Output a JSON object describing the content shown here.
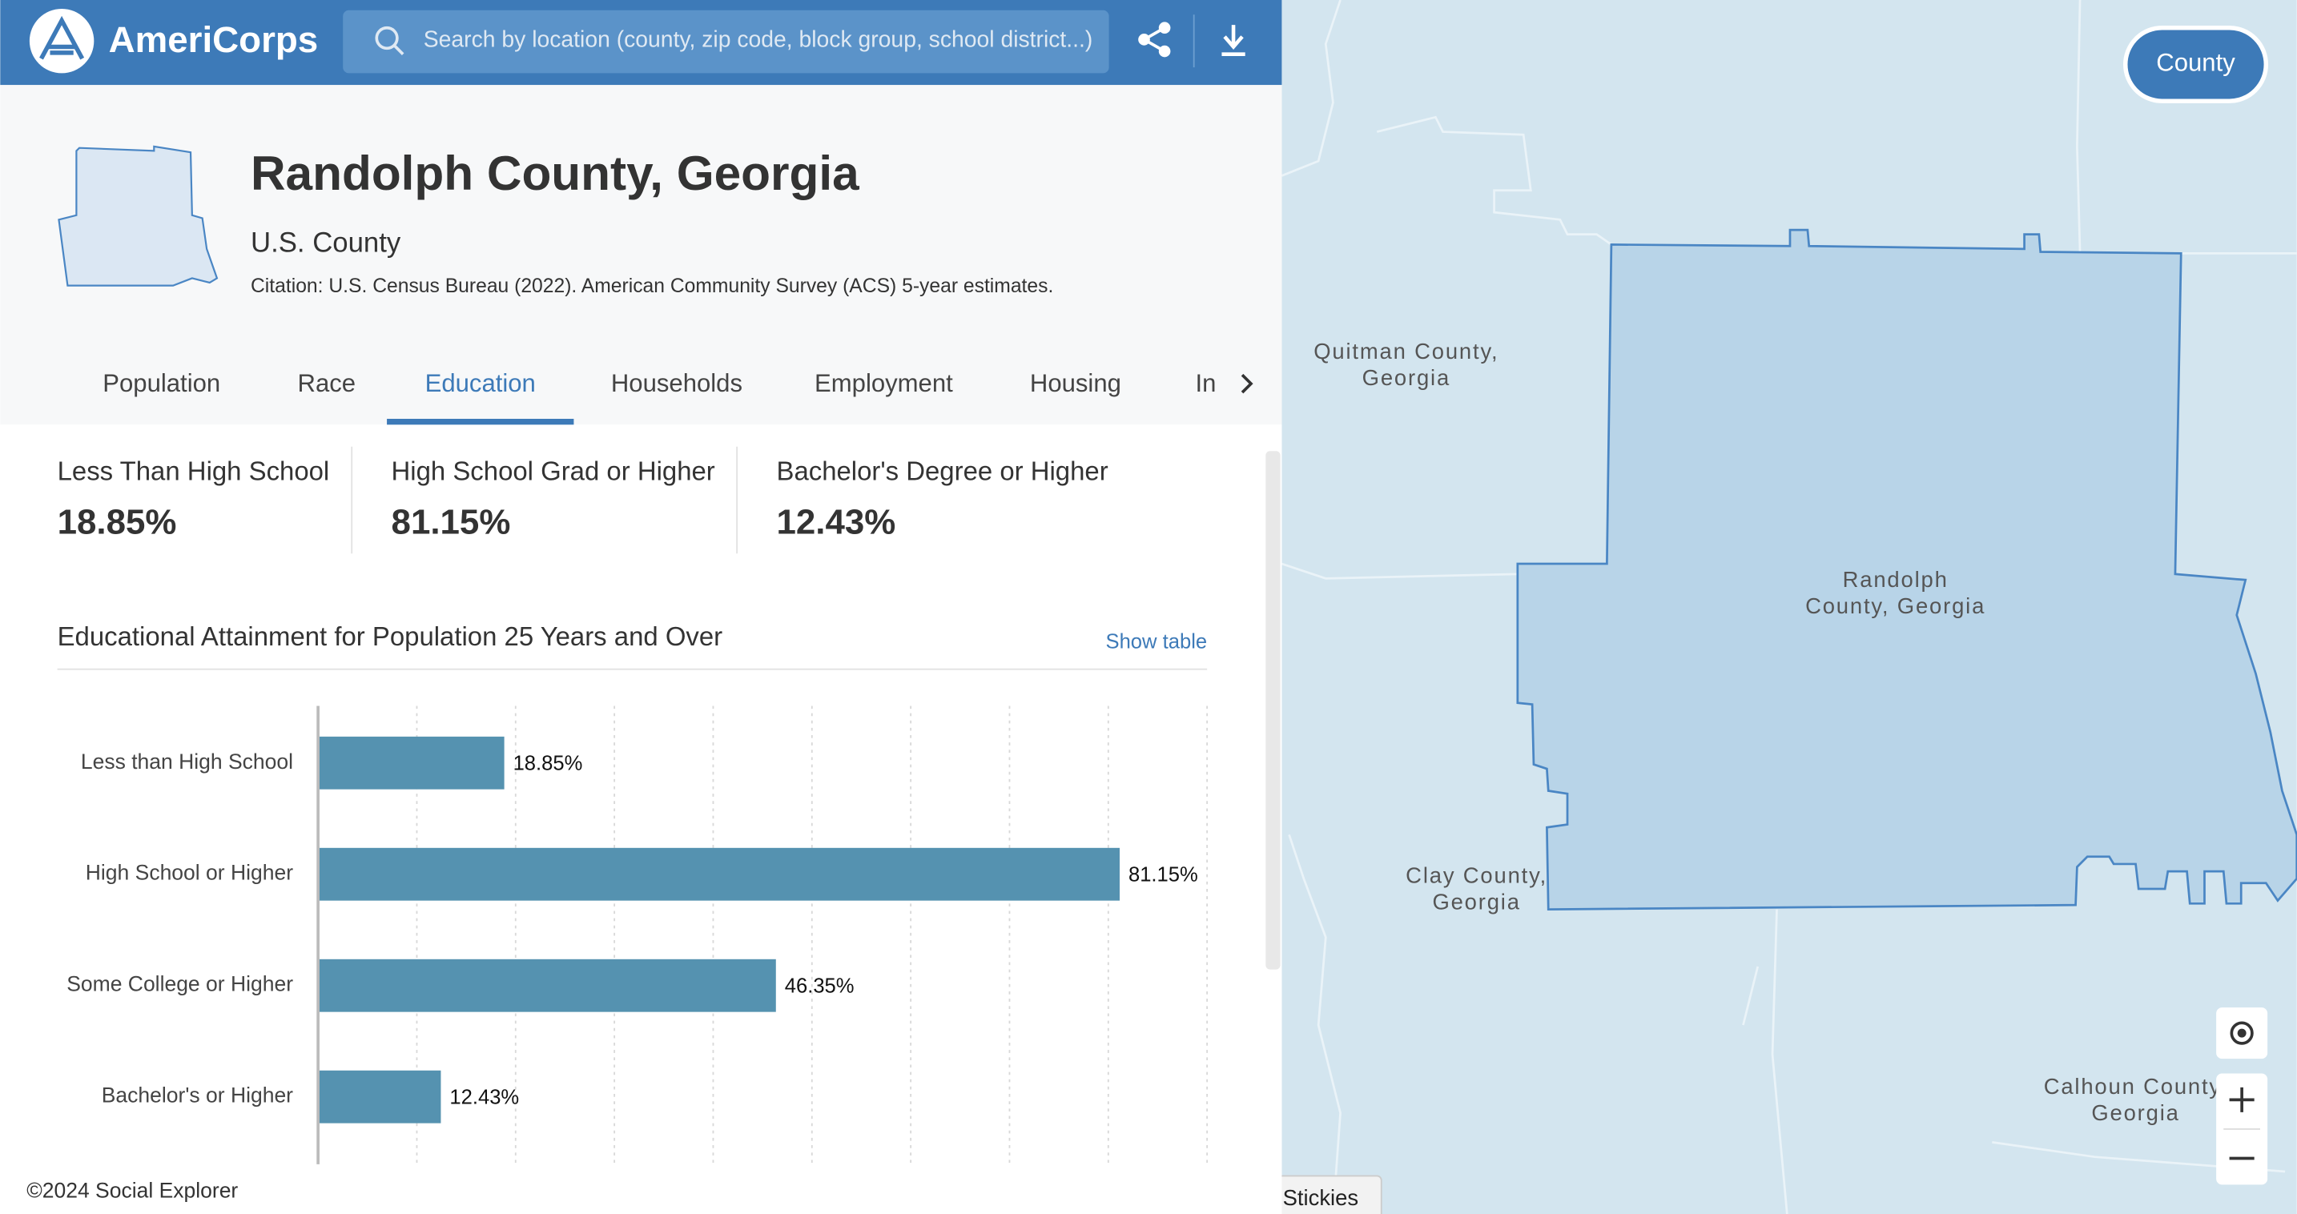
{
  "header": {
    "brand": "AmeriCorps",
    "search_placeholder": "Search by location (county, zip code, block group, school district...)"
  },
  "place": {
    "title": "Randolph County, Georgia",
    "subtitle": "U.S. County",
    "citation": "Citation: U.S. Census Bureau (2022). American Community Survey (ACS) 5-year estimates."
  },
  "tabs": [
    "Population",
    "Race",
    "Education",
    "Households",
    "Employment",
    "Housing",
    "In"
  ],
  "active_tab": 2,
  "stats": [
    {
      "label": "Less Than High School",
      "value": "18.85%"
    },
    {
      "label": "High School Grad or Higher",
      "value": "81.15%"
    },
    {
      "label": "Bachelor's Degree or Higher",
      "value": "12.43%"
    }
  ],
  "show_table": "Show table",
  "chart_data": {
    "type": "bar",
    "orientation": "horizontal",
    "title": "Educational Attainment for Population 25 Years and Over",
    "categories": [
      "Less than High School",
      "High School or Higher",
      "Some College or Higher",
      "Bachelor's or Higher"
    ],
    "values": [
      18.85,
      81.15,
      46.35,
      12.43
    ],
    "value_labels": [
      "18.85%",
      "81.15%",
      "46.35%",
      "12.43%"
    ],
    "color": "#5592b0",
    "xlim": [
      0,
      90
    ],
    "xticks": [
      0,
      10,
      20,
      30,
      40,
      50,
      60,
      70,
      80,
      90
    ],
    "grid": true
  },
  "footer": "©2024 Social Explorer",
  "map": {
    "layer_button": "County",
    "stickies": "Stickies",
    "labels": [
      {
        "lines": [
          "Quitman County,",
          "Georgia"
        ]
      },
      {
        "lines": [
          "Randolph",
          "County, Georgia"
        ]
      },
      {
        "lines": [
          "Clay County,",
          "Georgia"
        ]
      },
      {
        "lines": [
          "Calhoun County,",
          "Georgia"
        ]
      }
    ]
  }
}
